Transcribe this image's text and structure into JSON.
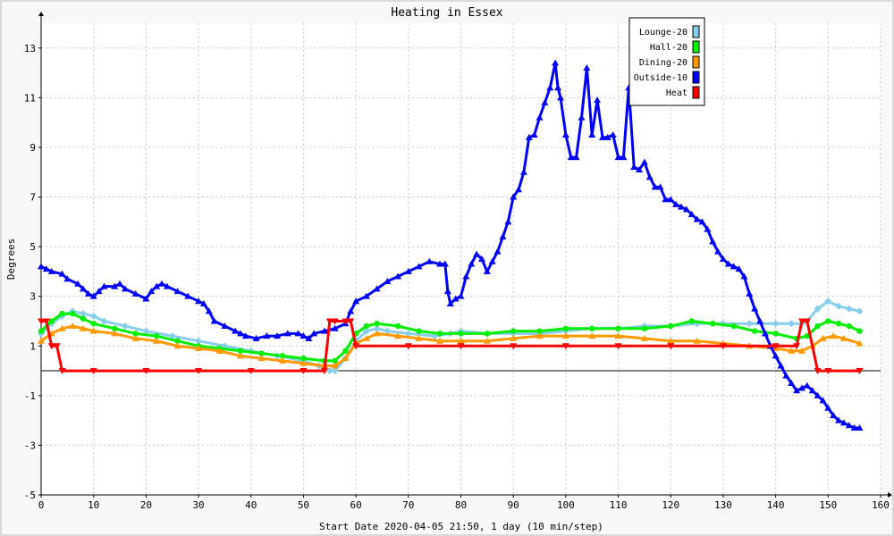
{
  "chart_data": {
    "type": "line",
    "title": "Heating in Essex",
    "xlabel": "Start Date 2020-04-05 21:50, 1 day (10 min/step)",
    "ylabel": "Degrees",
    "xlim": [
      0,
      160
    ],
    "ylim": [
      -5,
      14
    ],
    "xticks": [
      0,
      10,
      20,
      30,
      40,
      50,
      60,
      70,
      80,
      90,
      100,
      110,
      120,
      130,
      140,
      150,
      160
    ],
    "yticks": [
      -5,
      -3,
      -1,
      1,
      3,
      5,
      7,
      9,
      11,
      13
    ],
    "grid": true,
    "legend_position": "top-right",
    "series": [
      {
        "name": "Lounge-20",
        "color": "#87ceeb",
        "marker": "diamond",
        "points": [
          [
            0,
            1.5
          ],
          [
            2,
            1.9
          ],
          [
            4,
            2.2
          ],
          [
            6,
            2.4
          ],
          [
            8,
            2.3
          ],
          [
            10,
            2.2
          ],
          [
            12,
            2.0
          ],
          [
            16,
            1.8
          ],
          [
            20,
            1.6
          ],
          [
            25,
            1.4
          ],
          [
            30,
            1.2
          ],
          [
            35,
            1.0
          ],
          [
            40,
            0.8
          ],
          [
            45,
            0.6
          ],
          [
            50,
            0.4
          ],
          [
            53,
            0.2
          ],
          [
            55,
            0.0
          ],
          [
            56,
            0.0
          ],
          [
            58,
            0.5
          ],
          [
            60,
            1.2
          ],
          [
            62,
            1.6
          ],
          [
            64,
            1.7
          ],
          [
            66,
            1.6
          ],
          [
            70,
            1.5
          ],
          [
            75,
            1.4
          ],
          [
            78,
            1.5
          ],
          [
            80,
            1.6
          ],
          [
            85,
            1.5
          ],
          [
            90,
            1.5
          ],
          [
            95,
            1.5
          ],
          [
            100,
            1.6
          ],
          [
            105,
            1.7
          ],
          [
            110,
            1.7
          ],
          [
            115,
            1.8
          ],
          [
            120,
            1.8
          ],
          [
            125,
            1.9
          ],
          [
            130,
            1.9
          ],
          [
            135,
            1.9
          ],
          [
            140,
            1.9
          ],
          [
            143,
            1.9
          ],
          [
            145,
            1.9
          ],
          [
            146,
            2.0
          ],
          [
            148,
            2.5
          ],
          [
            150,
            2.8
          ],
          [
            152,
            2.6
          ],
          [
            154,
            2.5
          ],
          [
            156,
            2.4
          ]
        ]
      },
      {
        "name": "Hall-20",
        "color": "#00ee00",
        "marker": "circle",
        "points": [
          [
            0,
            1.6
          ],
          [
            2,
            2.0
          ],
          [
            4,
            2.3
          ],
          [
            6,
            2.3
          ],
          [
            8,
            2.1
          ],
          [
            10,
            1.9
          ],
          [
            14,
            1.7
          ],
          [
            18,
            1.5
          ],
          [
            22,
            1.4
          ],
          [
            26,
            1.2
          ],
          [
            30,
            1.0
          ],
          [
            34,
            0.9
          ],
          [
            38,
            0.8
          ],
          [
            42,
            0.7
          ],
          [
            46,
            0.6
          ],
          [
            50,
            0.5
          ],
          [
            54,
            0.4
          ],
          [
            56,
            0.4
          ],
          [
            58,
            0.8
          ],
          [
            60,
            1.5
          ],
          [
            62,
            1.8
          ],
          [
            64,
            1.9
          ],
          [
            68,
            1.8
          ],
          [
            72,
            1.6
          ],
          [
            76,
            1.5
          ],
          [
            80,
            1.5
          ],
          [
            85,
            1.5
          ],
          [
            90,
            1.6
          ],
          [
            95,
            1.6
          ],
          [
            100,
            1.7
          ],
          [
            105,
            1.7
          ],
          [
            110,
            1.7
          ],
          [
            115,
            1.7
          ],
          [
            120,
            1.8
          ],
          [
            124,
            2.0
          ],
          [
            128,
            1.9
          ],
          [
            132,
            1.8
          ],
          [
            136,
            1.6
          ],
          [
            140,
            1.5
          ],
          [
            144,
            1.3
          ],
          [
            146,
            1.4
          ],
          [
            148,
            1.8
          ],
          [
            150,
            2.0
          ],
          [
            152,
            1.9
          ],
          [
            154,
            1.8
          ],
          [
            156,
            1.6
          ]
        ]
      },
      {
        "name": "Dining-20",
        "color": "#ff9900",
        "marker": "triangle-up",
        "points": [
          [
            0,
            1.2
          ],
          [
            2,
            1.5
          ],
          [
            4,
            1.7
          ],
          [
            6,
            1.8
          ],
          [
            8,
            1.7
          ],
          [
            10,
            1.6
          ],
          [
            14,
            1.5
          ],
          [
            18,
            1.3
          ],
          [
            22,
            1.2
          ],
          [
            26,
            1.0
          ],
          [
            30,
            0.9
          ],
          [
            34,
            0.8
          ],
          [
            38,
            0.6
          ],
          [
            42,
            0.5
          ],
          [
            46,
            0.4
          ],
          [
            50,
            0.3
          ],
          [
            54,
            0.2
          ],
          [
            56,
            0.2
          ],
          [
            58,
            0.5
          ],
          [
            60,
            1.1
          ],
          [
            62,
            1.3
          ],
          [
            64,
            1.5
          ],
          [
            68,
            1.4
          ],
          [
            72,
            1.3
          ],
          [
            76,
            1.2
          ],
          [
            80,
            1.2
          ],
          [
            85,
            1.2
          ],
          [
            90,
            1.3
          ],
          [
            95,
            1.4
          ],
          [
            100,
            1.4
          ],
          [
            105,
            1.4
          ],
          [
            110,
            1.4
          ],
          [
            115,
            1.3
          ],
          [
            120,
            1.2
          ],
          [
            125,
            1.2
          ],
          [
            130,
            1.1
          ],
          [
            135,
            1.0
          ],
          [
            140,
            0.9
          ],
          [
            143,
            0.8
          ],
          [
            145,
            0.8
          ],
          [
            147,
            1.0
          ],
          [
            149,
            1.3
          ],
          [
            151,
            1.4
          ],
          [
            153,
            1.3
          ],
          [
            156,
            1.1
          ]
        ]
      },
      {
        "name": "Outside-10",
        "color": "#0000ff",
        "marker": "triangle-up",
        "points": [
          [
            0,
            4.2
          ],
          [
            1,
            4.1
          ],
          [
            2,
            4.0
          ],
          [
            4,
            3.9
          ],
          [
            5,
            3.7
          ],
          [
            7,
            3.5
          ],
          [
            8,
            3.3
          ],
          [
            9,
            3.1
          ],
          [
            10,
            3.0
          ],
          [
            11,
            3.2
          ],
          [
            12,
            3.4
          ],
          [
            14,
            3.4
          ],
          [
            15,
            3.5
          ],
          [
            16,
            3.3
          ],
          [
            18,
            3.1
          ],
          [
            20,
            2.9
          ],
          [
            21,
            3.2
          ],
          [
            22,
            3.4
          ],
          [
            23,
            3.5
          ],
          [
            24,
            3.4
          ],
          [
            26,
            3.2
          ],
          [
            28,
            3.0
          ],
          [
            30,
            2.8
          ],
          [
            31,
            2.7
          ],
          [
            32,
            2.4
          ],
          [
            33,
            2.0
          ],
          [
            35,
            1.8
          ],
          [
            37,
            1.6
          ],
          [
            38,
            1.5
          ],
          [
            39,
            1.4
          ],
          [
            41,
            1.3
          ],
          [
            43,
            1.4
          ],
          [
            45,
            1.4
          ],
          [
            47,
            1.5
          ],
          [
            49,
            1.5
          ],
          [
            50,
            1.4
          ],
          [
            51,
            1.3
          ],
          [
            52,
            1.5
          ],
          [
            54,
            1.6
          ],
          [
            56,
            1.7
          ],
          [
            58,
            1.9
          ],
          [
            59,
            2.4
          ],
          [
            60,
            2.8
          ],
          [
            62,
            3.0
          ],
          [
            64,
            3.3
          ],
          [
            66,
            3.6
          ],
          [
            68,
            3.8
          ],
          [
            70,
            4.0
          ],
          [
            72,
            4.2
          ],
          [
            74,
            4.4
          ],
          [
            76,
            4.3
          ],
          [
            77,
            4.3
          ],
          [
            77.5,
            3.2
          ],
          [
            78,
            2.7
          ],
          [
            79,
            2.9
          ],
          [
            80,
            3.0
          ],
          [
            81,
            3.8
          ],
          [
            82,
            4.3
          ],
          [
            83,
            4.7
          ],
          [
            84,
            4.5
          ],
          [
            85,
            4.0
          ],
          [
            86,
            4.4
          ],
          [
            87,
            4.8
          ],
          [
            88,
            5.4
          ],
          [
            89,
            6.0
          ],
          [
            90,
            7.0
          ],
          [
            91,
            7.3
          ],
          [
            92,
            8.0
          ],
          [
            93,
            9.4
          ],
          [
            94,
            9.5
          ],
          [
            95,
            10.2
          ],
          [
            96,
            10.8
          ],
          [
            97,
            11.4
          ],
          [
            98,
            12.4
          ],
          [
            98.5,
            11.4
          ],
          [
            99,
            11.0
          ],
          [
            100,
            9.5
          ],
          [
            101,
            8.6
          ],
          [
            102,
            8.6
          ],
          [
            103,
            10.2
          ],
          [
            104,
            12.2
          ],
          [
            105,
            9.5
          ],
          [
            106,
            10.9
          ],
          [
            107,
            9.4
          ],
          [
            108,
            9.4
          ],
          [
            109,
            9.5
          ],
          [
            110,
            8.6
          ],
          [
            111,
            8.6
          ],
          [
            112,
            11.4
          ],
          [
            113,
            8.2
          ],
          [
            114,
            8.1
          ],
          [
            115,
            8.4
          ],
          [
            116,
            7.8
          ],
          [
            117,
            7.4
          ],
          [
            118,
            7.4
          ],
          [
            119,
            6.9
          ],
          [
            120,
            6.9
          ],
          [
            121,
            6.7
          ],
          [
            122,
            6.6
          ],
          [
            123,
            6.5
          ],
          [
            124,
            6.3
          ],
          [
            125,
            6.1
          ],
          [
            126,
            6.0
          ],
          [
            127,
            5.7
          ],
          [
            128,
            5.2
          ],
          [
            129,
            4.8
          ],
          [
            130,
            4.5
          ],
          [
            131,
            4.3
          ],
          [
            132,
            4.2
          ],
          [
            133,
            4.1
          ],
          [
            134,
            3.8
          ],
          [
            135,
            3.1
          ],
          [
            136,
            2.5
          ],
          [
            137,
            2.0
          ],
          [
            138,
            1.5
          ],
          [
            139,
            1.0
          ],
          [
            140,
            0.6
          ],
          [
            141,
            0.2
          ],
          [
            142,
            -0.2
          ],
          [
            143,
            -0.5
          ],
          [
            144,
            -0.8
          ],
          [
            145,
            -0.7
          ],
          [
            146,
            -0.6
          ],
          [
            147,
            -0.8
          ],
          [
            148,
            -1.0
          ],
          [
            149,
            -1.2
          ],
          [
            150,
            -1.5
          ],
          [
            151,
            -1.8
          ],
          [
            152,
            -2.0
          ],
          [
            153,
            -2.1
          ],
          [
            154,
            -2.2
          ],
          [
            155,
            -2.3
          ],
          [
            156,
            -2.3
          ]
        ]
      },
      {
        "name": "Heat",
        "color": "#ff0000",
        "marker": "triangle-down",
        "points": [
          [
            0,
            2
          ],
          [
            1,
            2
          ],
          [
            2,
            1
          ],
          [
            3,
            1
          ],
          [
            4,
            0
          ],
          [
            10,
            0
          ],
          [
            20,
            0
          ],
          [
            30,
            0
          ],
          [
            40,
            0
          ],
          [
            50,
            0
          ],
          [
            54,
            0
          ],
          [
            55,
            2
          ],
          [
            56,
            2
          ],
          [
            58,
            2
          ],
          [
            59,
            2
          ],
          [
            60,
            1
          ],
          [
            70,
            1
          ],
          [
            80,
            1
          ],
          [
            90,
            1
          ],
          [
            100,
            1
          ],
          [
            110,
            1
          ],
          [
            120,
            1
          ],
          [
            130,
            1
          ],
          [
            140,
            1
          ],
          [
            144,
            1
          ],
          [
            145,
            2
          ],
          [
            146,
            2
          ],
          [
            148,
            0
          ],
          [
            150,
            0
          ],
          [
            156,
            0
          ]
        ]
      }
    ]
  }
}
